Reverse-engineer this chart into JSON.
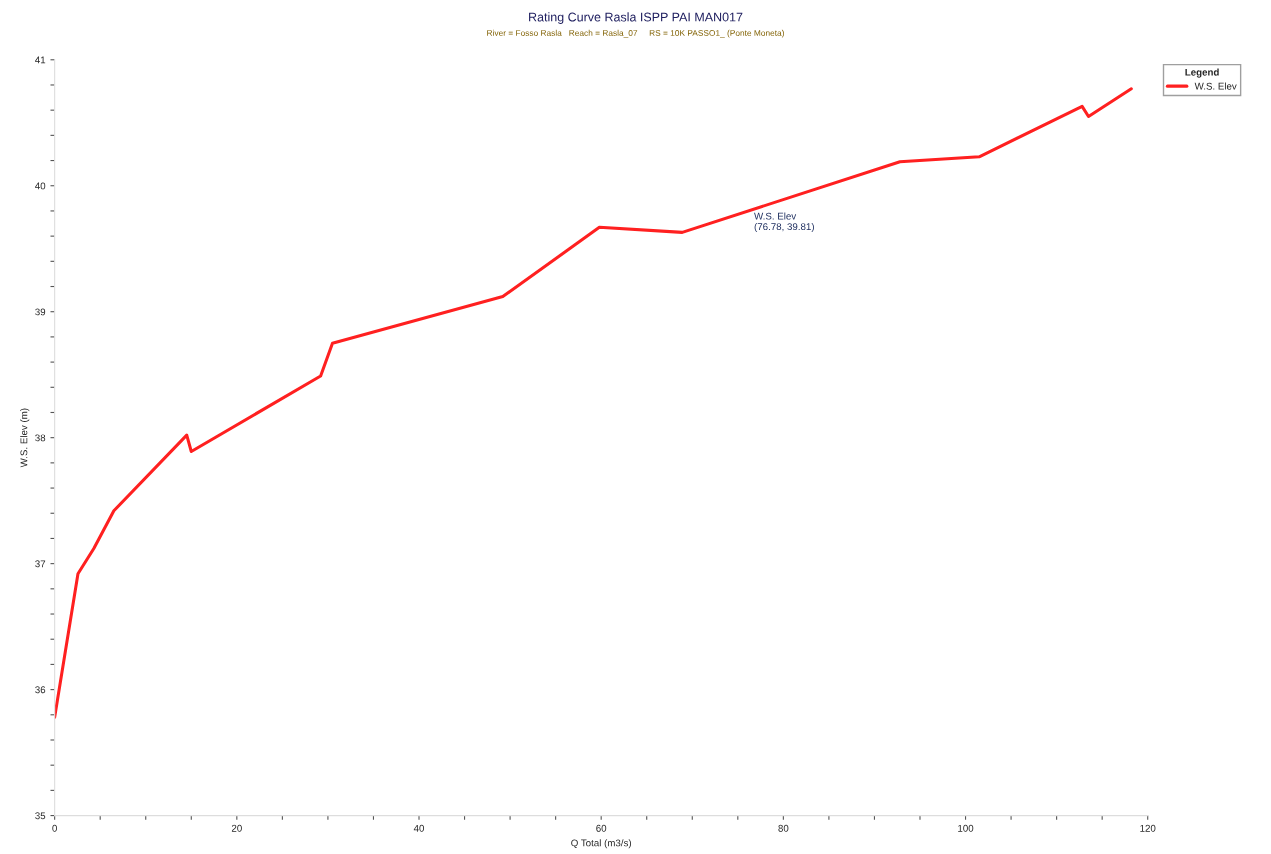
{
  "chart_data": {
    "type": "line",
    "title": "Rating Curve Rasla ISPP PAI MAN017",
    "subtitle": "River = Fosso Rasla   Reach = Rasla_07     RS = 10K PASSO1_ (Ponte Moneta)",
    "xlabel": "Q Total (m3/s)",
    "ylabel": "W.S. Elev (m)",
    "legend_title": "Legend",
    "x": [
      0,
      2.56,
      4.3,
      6.5,
      14.5,
      15.0,
      29.2,
      30.5,
      49.2,
      59.8,
      68.9,
      92.8,
      101.5,
      112.8,
      113.5,
      118.2
    ],
    "series": [
      {
        "name": "W.S. Elev",
        "color": "#ff2020",
        "values": [
          35.78,
          36.92,
          37.12,
          37.42,
          38.02,
          37.89,
          38.49,
          38.75,
          39.12,
          39.67,
          39.63,
          40.19,
          40.23,
          40.63,
          40.55,
          40.77
        ]
      }
    ],
    "annotations": [
      {
        "text": "W.S. Elev\n(76.78, 39.81)",
        "x": 76.78,
        "y": 39.81
      }
    ],
    "xlim": [
      0,
      120
    ],
    "ylim": [
      35,
      41
    ],
    "xticks": [
      0,
      {
        "value": 5,
        "label": null
      },
      {
        "value": 10,
        "label": null
      },
      {
        "value": 15,
        "label": null
      },
      20,
      {
        "value": 25,
        "label": null
      },
      {
        "value": 30,
        "label": null
      },
      {
        "value": 35,
        "label": null
      },
      40,
      {
        "value": 45,
        "label": null
      },
      {
        "value": 50,
        "label": null
      },
      {
        "value": 55,
        "label": null
      },
      60,
      {
        "value": 65,
        "label": null
      },
      {
        "value": 70,
        "label": null
      },
      {
        "value": 75,
        "label": null
      },
      80,
      {
        "value": 85,
        "label": null
      },
      {
        "value": 90,
        "label": null
      },
      {
        "value": 95,
        "label": null
      },
      100,
      {
        "value": 105,
        "label": null
      },
      {
        "value": 110,
        "label": null
      },
      {
        "value": 115,
        "label": null
      },
      120
    ],
    "yticks": [
      35,
      {
        "value": 35.2,
        "label": null
      },
      {
        "value": 35.4,
        "label": null
      },
      {
        "value": 35.6,
        "label": null
      },
      {
        "value": 35.8,
        "label": null
      },
      36,
      {
        "value": 36.2,
        "label": null
      },
      {
        "value": 36.4,
        "label": null
      },
      {
        "value": 36.6,
        "label": null
      },
      {
        "value": 36.8,
        "label": null
      },
      37,
      {
        "value": 37.2,
        "label": null
      },
      {
        "value": 37.4,
        "label": null
      },
      {
        "value": 37.6,
        "label": null
      },
      {
        "value": 37.8,
        "label": null
      },
      38,
      {
        "value": 38.2,
        "label": null
      },
      {
        "value": 38.4,
        "label": null
      },
      {
        "value": 38.6,
        "label": null
      },
      {
        "value": 38.8,
        "label": null
      },
      39,
      {
        "value": 39.2,
        "label": null
      },
      {
        "value": 39.4,
        "label": null
      },
      {
        "value": 39.6,
        "label": null
      },
      {
        "value": 39.8,
        "label": null
      },
      40,
      {
        "value": 40.2,
        "label": null
      },
      {
        "value": 40.4,
        "label": null
      },
      {
        "value": 40.6,
        "label": null
      },
      {
        "value": 40.8,
        "label": null
      },
      41
    ],
    "grid": false,
    "legend": "top right",
    "marker": "none",
    "line_style": "solid"
  }
}
